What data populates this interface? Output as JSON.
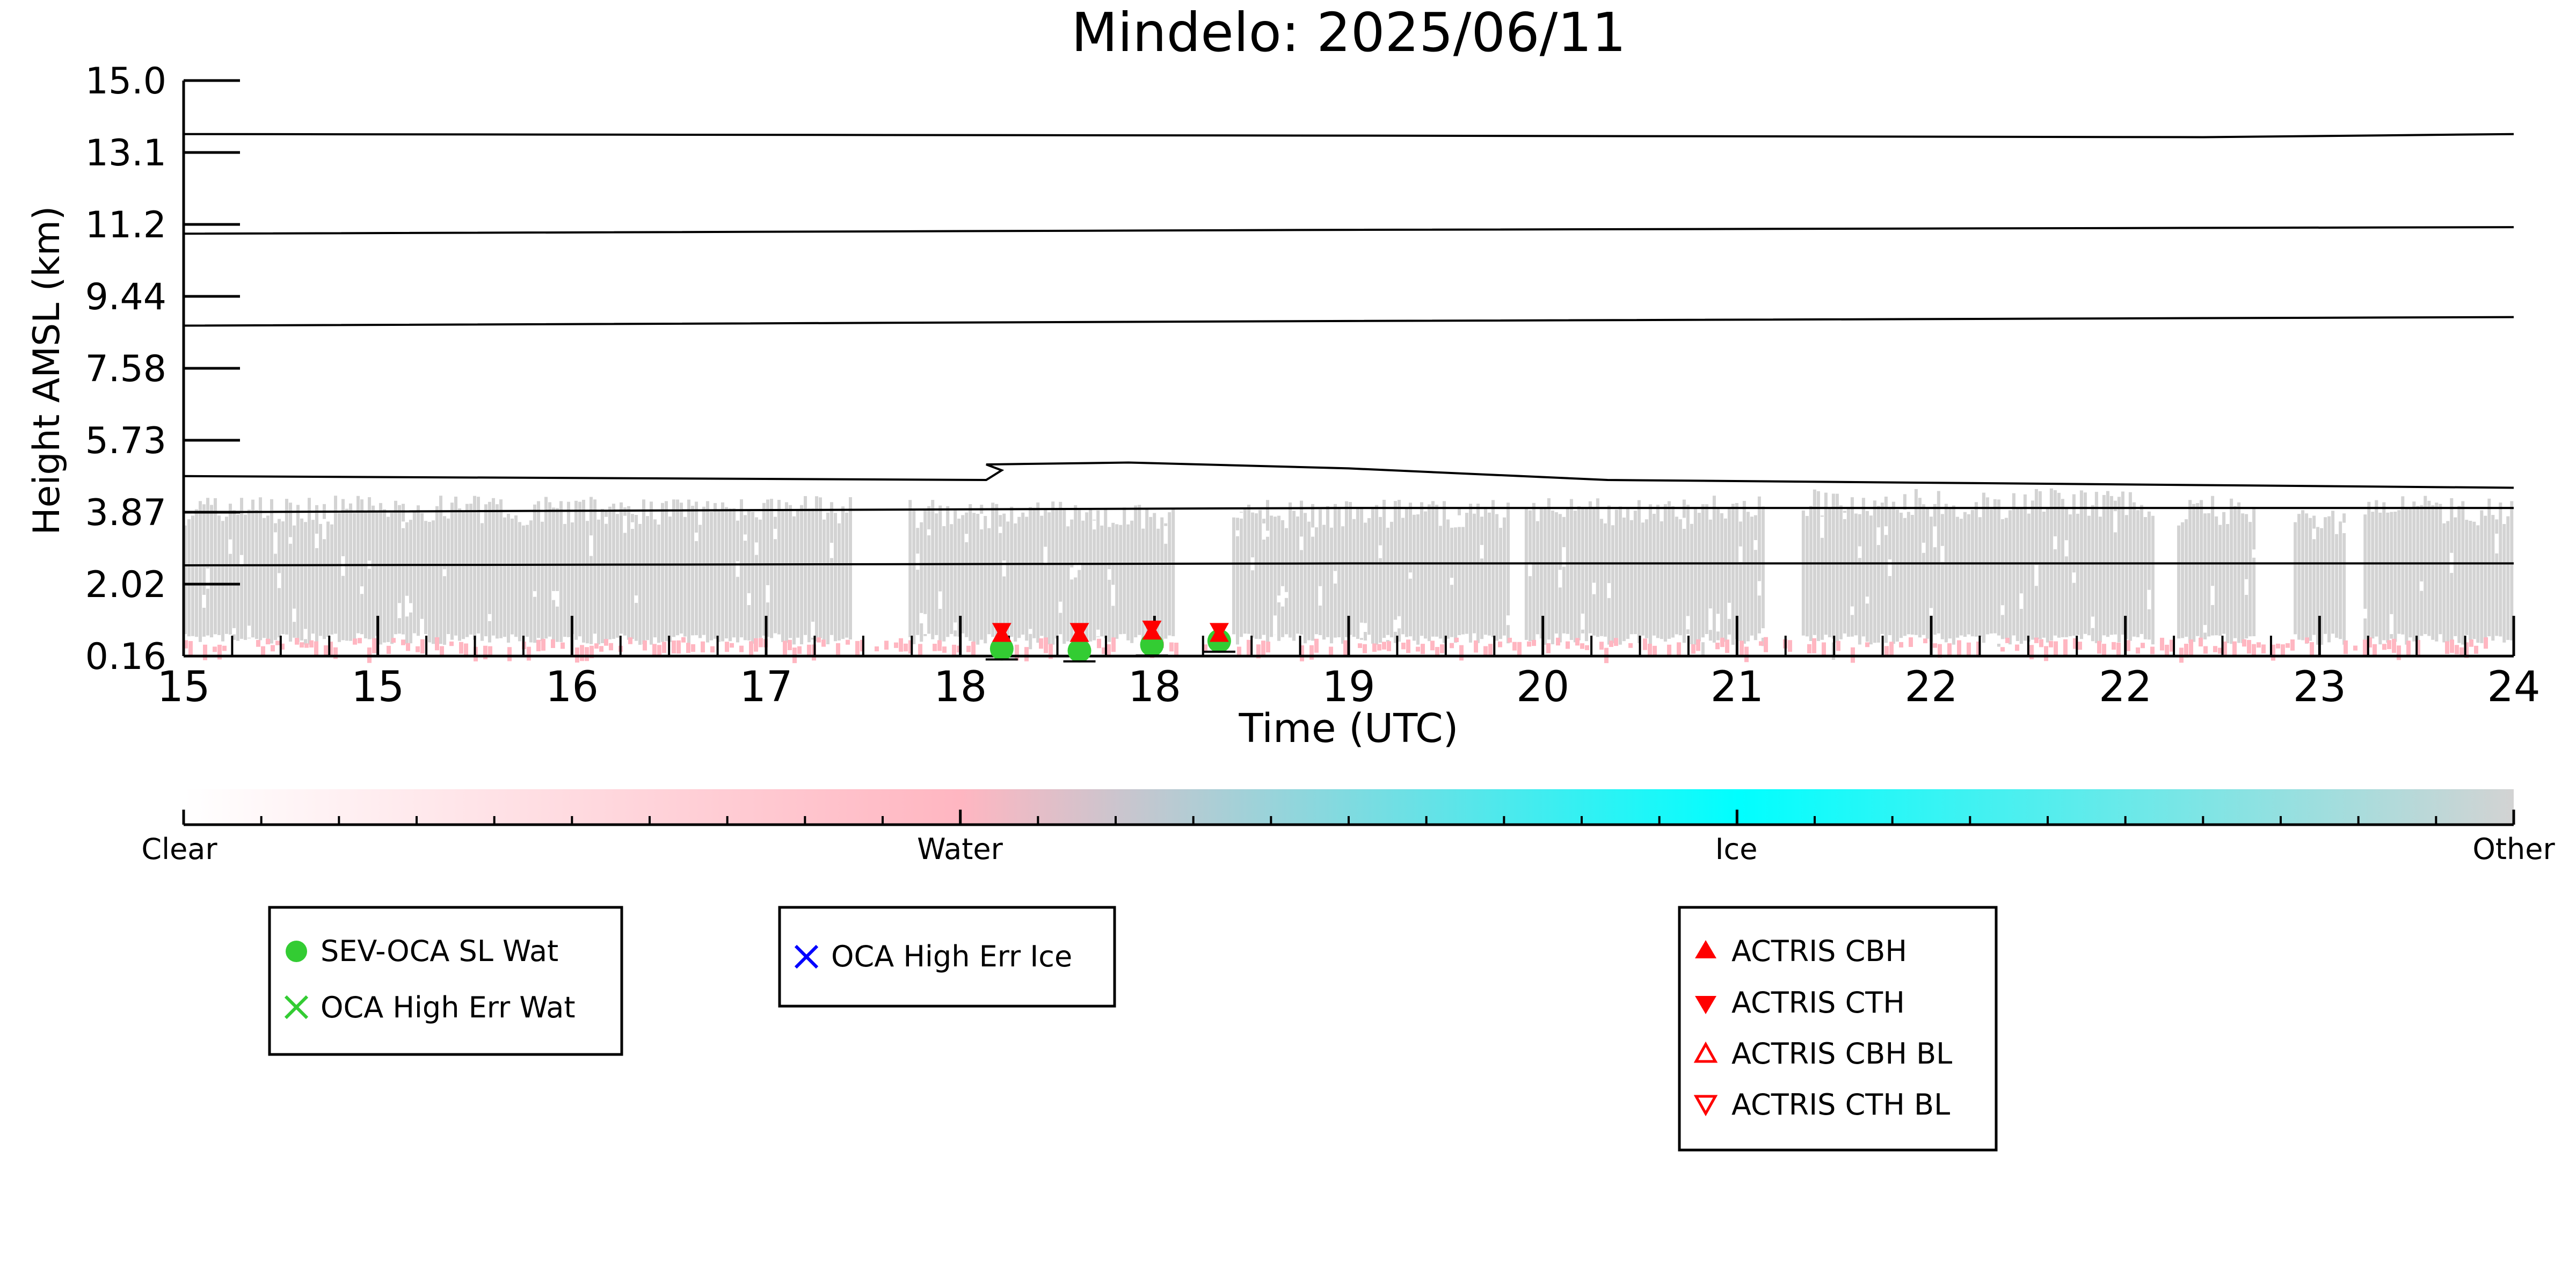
{
  "chart_data": {
    "type": "scatter",
    "title": "Mindelo: 2025/06/11",
    "xlabel": "Time (UTC)",
    "ylabel": "Height AMSL (km)",
    "xlim": [
      15.0,
      24.0
    ],
    "ylim": [
      0.16,
      15.0
    ],
    "ytick_labels": [
      "15.0",
      "13.1",
      "11.2",
      "9.44",
      "7.58",
      "5.73",
      "3.87",
      "2.02",
      "0.16"
    ],
    "xtick_labels": [
      "15",
      "15",
      "16",
      "17",
      "18",
      "18",
      "19",
      "20",
      "21",
      "22",
      "22",
      "23",
      "24"
    ],
    "grid": false,
    "contour_heights_km": [
      [
        [
          15.0,
          13.62
        ],
        [
          19.5,
          13.58
        ],
        [
          22.8,
          13.54
        ],
        [
          24.0,
          13.62
        ]
      ],
      [
        [
          15.0,
          11.05
        ],
        [
          19.5,
          11.15
        ],
        [
          24.0,
          11.22
        ]
      ],
      [
        [
          15.0,
          8.68
        ],
        [
          19.5,
          8.8
        ],
        [
          24.0,
          8.9
        ]
      ],
      [
        [
          15.0,
          4.8
        ],
        [
          18.1,
          4.7
        ],
        [
          18.16,
          4.95
        ],
        [
          18.1,
          5.1
        ],
        [
          18.65,
          5.15
        ],
        [
          19.5,
          5.0
        ],
        [
          20.5,
          4.7
        ],
        [
          24.0,
          4.5
        ]
      ],
      [
        [
          15.0,
          3.87
        ],
        [
          19.5,
          3.98
        ],
        [
          24.0,
          3.98
        ]
      ],
      [
        [
          15.0,
          2.5
        ],
        [
          19.5,
          2.55
        ],
        [
          24.0,
          2.55
        ]
      ]
    ],
    "cloud_mask_segments": [
      {
        "x0": 15.0,
        "x1": 17.58,
        "top_km": 4.3,
        "class": "Other"
      },
      {
        "x0": 17.8,
        "x1": 18.82,
        "top_km": 4.2,
        "class": "Other"
      },
      {
        "x0": 19.05,
        "x1": 20.12,
        "top_km": 4.2,
        "class": "Other"
      },
      {
        "x0": 20.18,
        "x1": 21.1,
        "top_km": 4.3,
        "class": "Other"
      },
      {
        "x0": 21.25,
        "x1": 22.6,
        "top_km": 4.5,
        "class": "Other"
      },
      {
        "x0": 22.7,
        "x1": 23.0,
        "top_km": 4.3,
        "class": "Other"
      },
      {
        "x0": 23.15,
        "x1": 23.35,
        "top_km": 4.0,
        "class": "Other"
      },
      {
        "x0": 23.42,
        "x1": 24.0,
        "top_km": 4.3,
        "class": "Other"
      }
    ],
    "water_layer": {
      "x0": 15.0,
      "x1": 24.0,
      "height_km": 0.65
    },
    "series": [
      {
        "name": "SEV-OCA SL Wat",
        "marker": "circle",
        "color": "#33cc33",
        "points": [
          [
            18.16,
            0.35
          ],
          [
            18.46,
            0.3
          ],
          [
            18.74,
            0.45
          ],
          [
            19.0,
            0.55
          ]
        ]
      },
      {
        "name": "OCA High Err Wat",
        "marker": "x",
        "color": "#33cc33",
        "points": []
      },
      {
        "name": "OCA High Err Ice",
        "marker": "x",
        "color": "#0000ff",
        "points": []
      },
      {
        "name": "ACTRIS CBH",
        "marker": "triangle-up",
        "color": "#ff0000",
        "points": [
          [
            18.16,
            0.72
          ],
          [
            18.46,
            0.72
          ],
          [
            18.74,
            0.78
          ],
          [
            19.0,
            0.72
          ]
        ]
      },
      {
        "name": "ACTRIS CTH",
        "marker": "triangle-down",
        "color": "#ff0000",
        "points": [
          [
            18.16,
            0.82
          ],
          [
            18.46,
            0.82
          ],
          [
            18.74,
            0.88
          ],
          [
            19.0,
            0.82
          ]
        ]
      },
      {
        "name": "ACTRIS CBH BL",
        "marker": "triangle-up-open",
        "color": "#ff0000",
        "points": []
      },
      {
        "name": "ACTRIS CTH BL",
        "marker": "triangle-down-open",
        "color": "#ff0000",
        "points": []
      }
    ],
    "colorbar": {
      "labels": [
        "Clear",
        "Water",
        "Ice",
        "Other"
      ],
      "colors": [
        "#ffffff",
        "#ffb6c1",
        "#00ffff",
        "#d3d3d3"
      ]
    },
    "legend_groups": [
      [
        "SEV-OCA SL Wat",
        "OCA High Err Wat"
      ],
      [
        "OCA High Err Ice"
      ],
      [
        "ACTRIS CBH",
        "ACTRIS CTH",
        "ACTRIS CBH BL",
        "ACTRIS CTH BL"
      ]
    ]
  }
}
